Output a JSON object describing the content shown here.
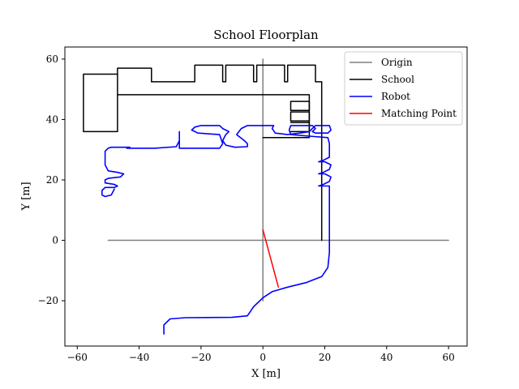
{
  "chart_data": {
    "type": "line",
    "title": "School Floorplan",
    "xlabel": "X [m]",
    "ylabel": "Y [m]",
    "xlim": [
      -64,
      66
    ],
    "ylim": [
      -35,
      64
    ],
    "xticks": [
      -60,
      -40,
      -20,
      0,
      20,
      40,
      60
    ],
    "yticks": [
      -20,
      0,
      20,
      40,
      60
    ],
    "grid": false,
    "legend_position": "top-right",
    "series": [
      {
        "name": "Origin",
        "color": "#808080",
        "segments": [
          [
            [
              -50,
              0
            ],
            [
              60,
              0
            ]
          ],
          [
            [
              0,
              -20
            ],
            [
              0,
              60
            ]
          ]
        ]
      },
      {
        "name": "School",
        "color": "#000000",
        "segments": [
          [
            [
              -58,
              36
            ],
            [
              -58,
              55
            ],
            [
              -47,
              55
            ],
            [
              -47,
              36
            ],
            [
              -58,
              36
            ]
          ],
          [
            [
              -47,
              55
            ],
            [
              -47,
              57
            ],
            [
              -36,
              57
            ],
            [
              -36,
              52.5
            ]
          ],
          [
            [
              -36,
              52.5
            ],
            [
              -22,
              52.5
            ],
            [
              -22,
              58
            ],
            [
              -13,
              58
            ],
            [
              -13,
              52.5
            ],
            [
              -12,
              52.5
            ],
            [
              -12,
              58
            ],
            [
              -3,
              58
            ],
            [
              -3,
              52.5
            ],
            [
              -2,
              52.5
            ],
            [
              -2,
              58
            ],
            [
              7,
              58
            ],
            [
              7,
              52.5
            ],
            [
              8,
              52.5
            ],
            [
              8,
              58
            ],
            [
              17,
              58
            ],
            [
              17,
              52.5
            ],
            [
              19,
              52.5
            ],
            [
              19,
              0
            ]
          ],
          [
            [
              -47,
              48.2
            ],
            [
              15,
              48.2
            ],
            [
              15,
              34
            ],
            [
              0,
              34
            ]
          ],
          [
            [
              9,
              46
            ],
            [
              15,
              46
            ],
            [
              15,
              43
            ],
            [
              9,
              43
            ],
            [
              9,
              46
            ]
          ],
          [
            [
              9,
              42.5
            ],
            [
              15,
              42.5
            ],
            [
              15,
              39.5
            ],
            [
              9,
              39.5
            ],
            [
              9,
              42.5
            ]
          ],
          [
            [
              9,
              39
            ],
            [
              15,
              39
            ],
            [
              15,
              36
            ],
            [
              9,
              36
            ]
          ]
        ]
      },
      {
        "name": "Robot",
        "color": "#0000ff",
        "points": [
          [
            -32,
            -31
          ],
          [
            -32,
            -28
          ],
          [
            -30,
            -26
          ],
          [
            -25,
            -25.6
          ],
          [
            -10,
            -25.5
          ],
          [
            -5,
            -25
          ],
          [
            -3,
            -22
          ],
          [
            0,
            -19
          ],
          [
            3,
            -17
          ],
          [
            8,
            -15.5
          ],
          [
            14,
            -14
          ],
          [
            19,
            -12
          ],
          [
            21,
            -9
          ],
          [
            21.5,
            -4
          ],
          [
            21.5,
            18
          ],
          [
            18,
            18
          ],
          [
            19.5,
            18.5
          ],
          [
            21.5,
            19.5
          ],
          [
            22,
            21
          ],
          [
            20,
            22
          ],
          [
            18,
            22
          ],
          [
            19.5,
            22.5
          ],
          [
            21.5,
            23.5
          ],
          [
            22,
            25
          ],
          [
            20,
            26
          ],
          [
            18,
            26
          ],
          [
            19.5,
            26.5
          ],
          [
            21.5,
            27.5
          ],
          [
            21.5,
            32
          ],
          [
            21,
            34
          ],
          [
            15,
            34.5
          ],
          [
            9,
            35
          ],
          [
            8.5,
            36.5
          ],
          [
            9,
            38
          ],
          [
            14,
            38
          ],
          [
            16,
            38
          ],
          [
            17,
            37
          ],
          [
            16,
            36
          ],
          [
            17,
            35.5
          ],
          [
            21,
            35.5
          ],
          [
            22,
            36.5
          ],
          [
            21.5,
            38
          ],
          [
            17,
            38
          ],
          [
            16,
            37
          ],
          [
            15,
            36
          ],
          [
            12,
            35.5
          ],
          [
            8,
            35
          ],
          [
            4,
            35.5
          ],
          [
            3,
            37
          ],
          [
            3.5,
            38
          ],
          [
            1,
            38
          ],
          [
            -5,
            38
          ],
          [
            -7,
            37
          ],
          [
            -8.5,
            35
          ],
          [
            -6,
            33
          ],
          [
            -5,
            32
          ],
          [
            -5,
            31
          ],
          [
            -9,
            30.8
          ],
          [
            -12,
            31.5
          ],
          [
            -13,
            33
          ],
          [
            -12,
            35
          ],
          [
            -11,
            36
          ],
          [
            -13,
            37
          ],
          [
            -14,
            38
          ],
          [
            -20,
            38
          ],
          [
            -22,
            37.5
          ],
          [
            -23,
            36.5
          ],
          [
            -21,
            35.5
          ],
          [
            -14,
            35
          ],
          [
            -13,
            32
          ],
          [
            -14,
            30.5
          ],
          [
            -22,
            30.5
          ],
          [
            -27,
            30.5
          ],
          [
            -27,
            33
          ],
          [
            -27,
            36
          ],
          [
            -27,
            33
          ],
          [
            -28,
            31
          ],
          [
            -35,
            30.5
          ],
          [
            -44,
            30.5
          ],
          [
            -43,
            30.8
          ],
          [
            -49,
            30.8
          ],
          [
            -50,
            30.5
          ],
          [
            -51,
            29.5
          ],
          [
            -51,
            25
          ],
          [
            -50,
            23
          ],
          [
            -47,
            22.5
          ],
          [
            -45,
            22
          ],
          [
            -46,
            21
          ],
          [
            -50,
            20.5
          ],
          [
            -51,
            20
          ],
          [
            -51,
            19
          ],
          [
            -48,
            18.5
          ],
          [
            -47,
            18
          ],
          [
            -48,
            17.5
          ],
          [
            -51,
            17.5
          ],
          [
            -52,
            16.5
          ],
          [
            -52,
            15
          ],
          [
            -51,
            14.5
          ],
          [
            -49,
            15
          ],
          [
            -48,
            17
          ]
        ]
      },
      {
        "name": "Matching Point",
        "color": "#ff0000",
        "segments": [
          [
            [
              0,
              3.5
            ],
            [
              5,
              -15.5
            ]
          ]
        ]
      }
    ]
  }
}
